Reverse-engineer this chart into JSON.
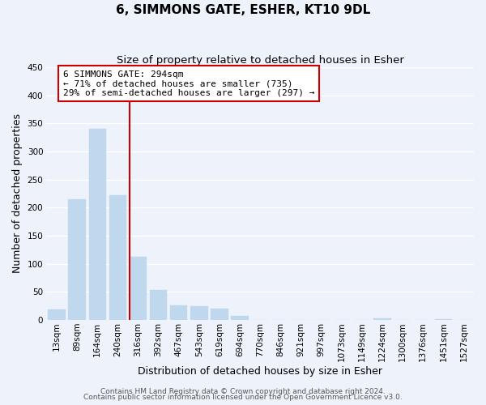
{
  "title": "6, SIMMONS GATE, ESHER, KT10 9DL",
  "subtitle": "Size of property relative to detached houses in Esher",
  "xlabel": "Distribution of detached houses by size in Esher",
  "ylabel": "Number of detached properties",
  "bar_color": "#c0d8ee",
  "bar_edge_color": "#c0d8ee",
  "xlabels": [
    "13sqm",
    "89sqm",
    "164sqm",
    "240sqm",
    "316sqm",
    "392sqm",
    "467sqm",
    "543sqm",
    "619sqm",
    "694sqm",
    "770sqm",
    "846sqm",
    "921sqm",
    "997sqm",
    "1073sqm",
    "1149sqm",
    "1224sqm",
    "1300sqm",
    "1376sqm",
    "1451sqm",
    "1527sqm"
  ],
  "bar_heights": [
    18,
    215,
    340,
    222,
    113,
    53,
    26,
    24,
    20,
    7,
    0,
    0,
    0,
    0,
    0,
    0,
    3,
    0,
    0,
    2,
    0
  ],
  "ylim": [
    0,
    450
  ],
  "yticks": [
    0,
    50,
    100,
    150,
    200,
    250,
    300,
    350,
    400,
    450
  ],
  "red_line_index": 4,
  "annotation_line1": "6 SIMMONS GATE: 294sqm",
  "annotation_line2": "← 71% of detached houses are smaller (735)",
  "annotation_line3": "29% of semi-detached houses are larger (297) →",
  "annotation_box_color": "#ffffff",
  "annotation_box_edge_color": "#cc0000",
  "footer_line1": "Contains HM Land Registry data © Crown copyright and database right 2024.",
  "footer_line2": "Contains public sector information licensed under the Open Government Licence v3.0.",
  "background_color": "#eef2fa",
  "plot_background_color": "#eef2fa",
  "grid_color": "#ffffff",
  "title_fontsize": 11,
  "subtitle_fontsize": 9.5,
  "axis_label_fontsize": 9,
  "tick_fontsize": 7.5,
  "footer_fontsize": 6.5,
  "annotation_fontsize": 8
}
